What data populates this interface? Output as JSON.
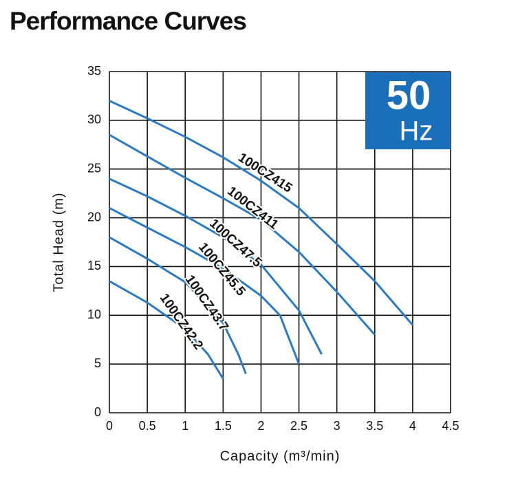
{
  "chart_data": {
    "type": "line",
    "title": "Performance Curves",
    "x_label": "Capacity (m³/min)",
    "y_label": "Total Head (m)",
    "annotations": [
      "50",
      "Hz"
    ],
    "annotation_color": "#1a6fba",
    "xlim": [
      0,
      4.5
    ],
    "xticks": [
      0,
      0.5,
      1,
      1.5,
      2,
      2.5,
      3,
      3.5,
      4,
      4.5
    ],
    "ylim": [
      0,
      35
    ],
    "yticks": [
      0,
      5,
      10,
      15,
      20,
      25,
      30,
      35
    ],
    "grid": true,
    "series": [
      {
        "name": "100CZ415",
        "color": "#2a7bc4",
        "x": [
          0,
          0.5,
          1,
          1.5,
          2,
          2.5,
          3,
          3.5,
          4
        ],
        "values": [
          32,
          30.2,
          28.3,
          26.2,
          23.8,
          21,
          17.3,
          13.5,
          9
        ]
      },
      {
        "name": "100CZ411",
        "color": "#2a7bc4",
        "x": [
          0,
          0.5,
          1,
          1.5,
          2,
          2.5,
          3,
          3.5
        ],
        "values": [
          28.5,
          26.3,
          24.1,
          22,
          19.8,
          16.5,
          12.4,
          8
        ]
      },
      {
        "name": "100CZ47.5",
        "color": "#2a7bc4",
        "x": [
          0,
          0.5,
          1,
          1.5,
          2,
          2.5,
          2.8
        ],
        "values": [
          24,
          22.2,
          20.2,
          18,
          15.2,
          10.5,
          6
        ]
      },
      {
        "name": "100CZ45.5",
        "color": "#2a7bc4",
        "x": [
          0,
          0.5,
          1,
          1.5,
          2,
          2.25,
          2.5
        ],
        "values": [
          21,
          19,
          17,
          14.8,
          12,
          10,
          5
        ]
      },
      {
        "name": "100CZ43.7",
        "color": "#2a7bc4",
        "x": [
          0,
          0.5,
          1,
          1.5,
          1.7,
          1.8
        ],
        "values": [
          18,
          15.8,
          13.4,
          9.2,
          6,
          4
        ]
      },
      {
        "name": "100CZ42.2",
        "color": "#2a7bc4",
        "x": [
          0,
          0.5,
          1,
          1.3,
          1.5
        ],
        "values": [
          13.5,
          11.3,
          8.6,
          6,
          3.5
        ]
      }
    ]
  }
}
